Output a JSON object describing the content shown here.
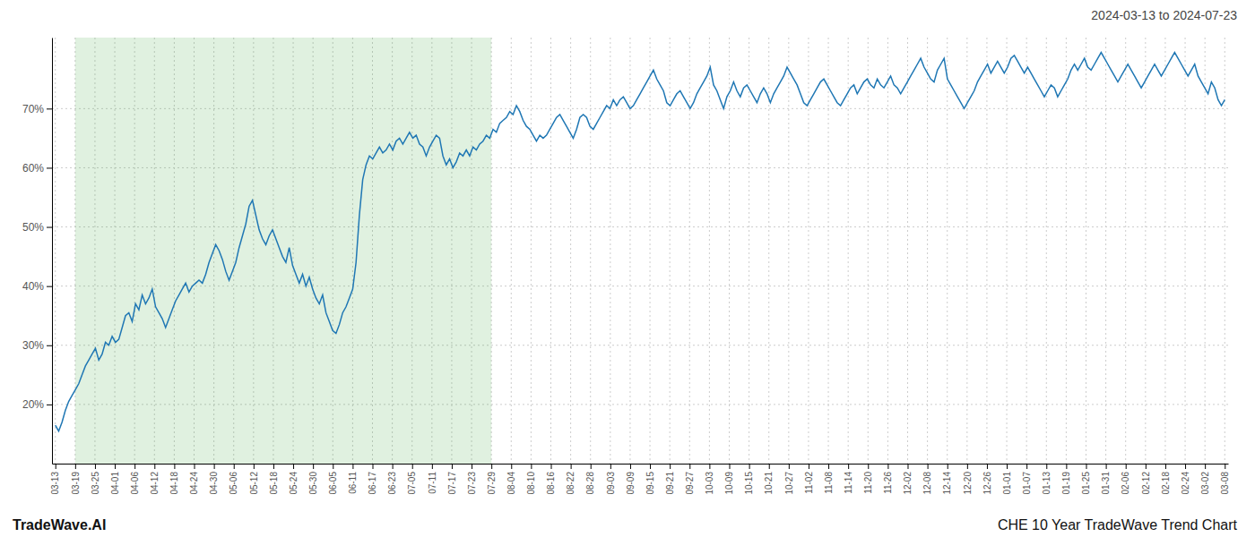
{
  "chart_data": {
    "type": "line",
    "title": "CHE 10 Year TradeWave Trend Chart",
    "subtitle": "2024-03-13 to 2024-07-23",
    "annotations": [
      "TradeWave.AI"
    ],
    "grid": true,
    "xlim": [
      -1,
      351
    ],
    "xticks": [
      {
        "value": 0,
        "label": "03-13"
      },
      {
        "value": 5.9322,
        "label": "03-19"
      },
      {
        "value": 11.8644,
        "label": "03-25"
      },
      {
        "value": 17.7966,
        "label": "04-01"
      },
      {
        "value": 23.7288,
        "label": "04-06"
      },
      {
        "value": 29.661,
        "label": "04-12"
      },
      {
        "value": 35.5932,
        "label": "04-18"
      },
      {
        "value": 41.5254,
        "label": "04-24"
      },
      {
        "value": 47.4576,
        "label": "04-30"
      },
      {
        "value": 53.3898,
        "label": "05-06"
      },
      {
        "value": 59.322,
        "label": "05-12"
      },
      {
        "value": 65.2542,
        "label": "05-18"
      },
      {
        "value": 71.1864,
        "label": "05-24"
      },
      {
        "value": 77.1186,
        "label": "05-30"
      },
      {
        "value": 83.0508,
        "label": "06-05"
      },
      {
        "value": 88.9831,
        "label": "06-11"
      },
      {
        "value": 94.9153,
        "label": "06-17"
      },
      {
        "value": 100.8475,
        "label": "06-23"
      },
      {
        "value": 106.7797,
        "label": "07-05"
      },
      {
        "value": 112.7119,
        "label": "07-11"
      },
      {
        "value": 118.6441,
        "label": "07-17"
      },
      {
        "value": 124.5763,
        "label": "07-23"
      },
      {
        "value": 130.5085,
        "label": "07-29"
      },
      {
        "value": 136.4407,
        "label": "08-04"
      },
      {
        "value": 142.3729,
        "label": "08-10"
      },
      {
        "value": 148.3051,
        "label": "08-16"
      },
      {
        "value": 154.2373,
        "label": "08-22"
      },
      {
        "value": 160.1695,
        "label": "08-28"
      },
      {
        "value": 166.1017,
        "label": "09-03"
      },
      {
        "value": 172.0339,
        "label": "09-09"
      },
      {
        "value": 177.9661,
        "label": "09-15"
      },
      {
        "value": 183.8983,
        "label": "09-21"
      },
      {
        "value": 189.8305,
        "label": "09-27"
      },
      {
        "value": 195.7627,
        "label": "10-03"
      },
      {
        "value": 201.6949,
        "label": "10-09"
      },
      {
        "value": 207.6271,
        "label": "10-15"
      },
      {
        "value": 213.5593,
        "label": "10-21"
      },
      {
        "value": 219.4915,
        "label": "10-27"
      },
      {
        "value": 225.4237,
        "label": "11-02"
      },
      {
        "value": 231.3559,
        "label": "11-08"
      },
      {
        "value": 237.2881,
        "label": "11-14"
      },
      {
        "value": 243.2203,
        "label": "11-20"
      },
      {
        "value": 249.1525,
        "label": "11-26"
      },
      {
        "value": 255.0847,
        "label": "12-02"
      },
      {
        "value": 261.0169,
        "label": "12-08"
      },
      {
        "value": 266.9492,
        "label": "12-14"
      },
      {
        "value": 272.8814,
        "label": "12-20"
      },
      {
        "value": 278.8136,
        "label": "12-26"
      },
      {
        "value": 284.7458,
        "label": "01-01"
      },
      {
        "value": 290.678,
        "label": "01-07"
      },
      {
        "value": 296.6102,
        "label": "01-13"
      },
      {
        "value": 302.5424,
        "label": "01-19"
      },
      {
        "value": 308.4746,
        "label": "01-25"
      },
      {
        "value": 314.4068,
        "label": "01-31"
      },
      {
        "value": 320.339,
        "label": "02-06"
      },
      {
        "value": 326.2712,
        "label": "02-12"
      },
      {
        "value": 332.2034,
        "label": "02-18"
      },
      {
        "value": 338.1356,
        "label": "02-24"
      },
      {
        "value": 344.0678,
        "label": "03-02"
      },
      {
        "value": 350,
        "label": "03-08"
      }
    ],
    "shaded_range": [
      5.9322,
      130.5085
    ],
    "ylim": [
      10,
      82
    ],
    "yticks": [
      {
        "value": 20,
        "label": "20%"
      },
      {
        "value": 30,
        "label": "30%"
      },
      {
        "value": 40,
        "label": "40%"
      },
      {
        "value": 50,
        "label": "50%"
      },
      {
        "value": 60,
        "label": "60%"
      },
      {
        "value": 70,
        "label": "70%"
      }
    ],
    "values": [
      16.5,
      15.5,
      17.0,
      19.0,
      20.5,
      21.5,
      22.5,
      23.5,
      25.0,
      26.5,
      27.5,
      28.5,
      29.5,
      27.5,
      28.5,
      30.5,
      30.0,
      31.5,
      30.5,
      31.0,
      33.0,
      35.0,
      35.5,
      34.0,
      37.0,
      36.0,
      38.5,
      37.0,
      38.0,
      39.5,
      36.5,
      35.5,
      34.5,
      33.0,
      34.5,
      36.0,
      37.5,
      38.5,
      39.5,
      40.5,
      39.0,
      40.0,
      40.5,
      41.0,
      40.5,
      42.0,
      44.0,
      45.5,
      47.0,
      46.0,
      44.5,
      42.5,
      41.0,
      42.5,
      44.0,
      46.5,
      48.5,
      50.5,
      53.5,
      54.5,
      52.0,
      49.5,
      48.0,
      47.0,
      48.5,
      49.5,
      48.0,
      46.5,
      45.0,
      44.0,
      46.5,
      43.5,
      42.0,
      40.5,
      42.0,
      40.0,
      41.5,
      39.5,
      38.0,
      37.0,
      38.5,
      35.5,
      34.0,
      32.5,
      32.0,
      33.5,
      35.5,
      36.5,
      38.0,
      39.5,
      44.0,
      52.0,
      58.0,
      60.5,
      62.0,
      61.5,
      62.5,
      63.5,
      62.5,
      63.0,
      64.0,
      63.0,
      64.5,
      65.0,
      64.0,
      65.0,
      66.0,
      65.0,
      65.5,
      64.0,
      63.5,
      62.0,
      63.5,
      64.5,
      65.5,
      65.0,
      62.0,
      60.5,
      61.5,
      60.0,
      61.0,
      62.5,
      62.0,
      63.0,
      62.0,
      63.5,
      63.0,
      64.0,
      64.5,
      65.5,
      65.0,
      66.5,
      66.0,
      67.5,
      68.0,
      68.5,
      69.5,
      69.0,
      70.5,
      69.5,
      68.0,
      67.0,
      66.5,
      65.5,
      64.5,
      65.5,
      65.0,
      65.5,
      66.5,
      67.5,
      68.5,
      69.0,
      68.0,
      67.0,
      66.0,
      65.0,
      66.5,
      68.5,
      69.0,
      68.5,
      67.0,
      66.5,
      67.5,
      68.5,
      69.5,
      70.5,
      70.0,
      71.5,
      70.5,
      71.5,
      72.0,
      71.0,
      70.0,
      70.5,
      71.5,
      72.5,
      73.5,
      74.5,
      75.5,
      76.5,
      75.0,
      74.0,
      73.0,
      71.0,
      70.5,
      71.5,
      72.5,
      73.0,
      72.0,
      71.0,
      70.0,
      71.0,
      72.5,
      73.5,
      74.5,
      75.5,
      77.0,
      74.0,
      73.0,
      71.5,
      70.0,
      72.0,
      73.0,
      74.5,
      73.0,
      72.0,
      73.5,
      74.0,
      73.0,
      72.0,
      71.0,
      72.5,
      73.5,
      72.5,
      71.0,
      72.5,
      73.5,
      74.5,
      75.5,
      77.0,
      76.0,
      75.0,
      74.0,
      72.5,
      71.0,
      70.5,
      71.5,
      72.5,
      73.5,
      74.5,
      75.0,
      74.0,
      73.0,
      72.0,
      71.0,
      70.5,
      71.5,
      72.5,
      73.5,
      74.0,
      72.5,
      73.5,
      74.5,
      75.0,
      74.0,
      73.5,
      75.0,
      74.0,
      73.5,
      74.5,
      75.5,
      74.0,
      73.5,
      72.5,
      73.5,
      74.5,
      75.5,
      76.5,
      77.5,
      78.5,
      77.0,
      76.0,
      75.0,
      74.5,
      76.5,
      77.5,
      78.5,
      75.0,
      74.0,
      73.0,
      72.0,
      71.0,
      70.0,
      71.0,
      72.0,
      73.0,
      74.5,
      75.5,
      76.5,
      77.5,
      76.0,
      77.0,
      78.0,
      77.0,
      76.0,
      77.0,
      78.5,
      79.0,
      78.0,
      77.0,
      76.0,
      77.0,
      76.0,
      75.0,
      74.0,
      73.0,
      72.0,
      73.0,
      74.0,
      73.5,
      72.0,
      73.0,
      74.0,
      75.0,
      76.5,
      77.5,
      76.5,
      77.5,
      78.5,
      77.0,
      76.5,
      77.5,
      78.5,
      79.5,
      78.5,
      77.5,
      76.5,
      75.5,
      74.5,
      75.5,
      76.5,
      77.5,
      76.5,
      75.5,
      74.5,
      73.5,
      74.5,
      75.5,
      76.5,
      77.5,
      76.5,
      75.5,
      76.5,
      77.5,
      78.5,
      79.5,
      78.5,
      77.5,
      76.5,
      75.5,
      76.5,
      77.5,
      75.5,
      74.5,
      73.5,
      72.5,
      74.5,
      73.5,
      71.5,
      70.5,
      71.5
    ]
  }
}
